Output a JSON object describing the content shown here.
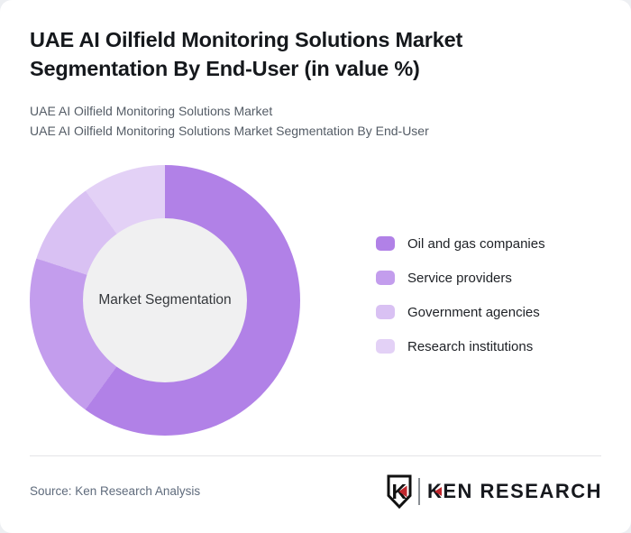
{
  "header": {
    "title": "UAE AI Oilfield Monitoring Solutions Market Segmentation By End-User (in value %)",
    "subtitle_line1": "UAE AI Oilfield Monitoring Solutions Market",
    "subtitle_line2": "UAE AI Oilfield Monitoring Solutions Market Segmentation By End-User"
  },
  "chart_data": {
    "type": "pie",
    "donut": true,
    "title": "UAE AI Oilfield Monitoring Solutions Market Segmentation By End-User (in value %)",
    "center_label": "Market Segmentation",
    "start_angle_deg": 0,
    "direction": "clockwise",
    "legend_position": "right",
    "hole_color": "#f0f0f1",
    "segments": [
      {
        "label": "Oil and gas companies",
        "value": 60,
        "color": "#b181e7"
      },
      {
        "label": "Service providers",
        "value": 20,
        "color": "#c39ded"
      },
      {
        "label": "Government agencies",
        "value": 10,
        "color": "#d9c1f3"
      },
      {
        "label": "Research institutions",
        "value": 10,
        "color": "#e3d1f6"
      }
    ]
  },
  "footer": {
    "source": "Source: Ken Research Analysis",
    "logo": {
      "badge_letter": "K",
      "wordmark_first": "K",
      "wordmark_rest": "EN RESEARCH",
      "accent_color": "#c0272d"
    }
  }
}
